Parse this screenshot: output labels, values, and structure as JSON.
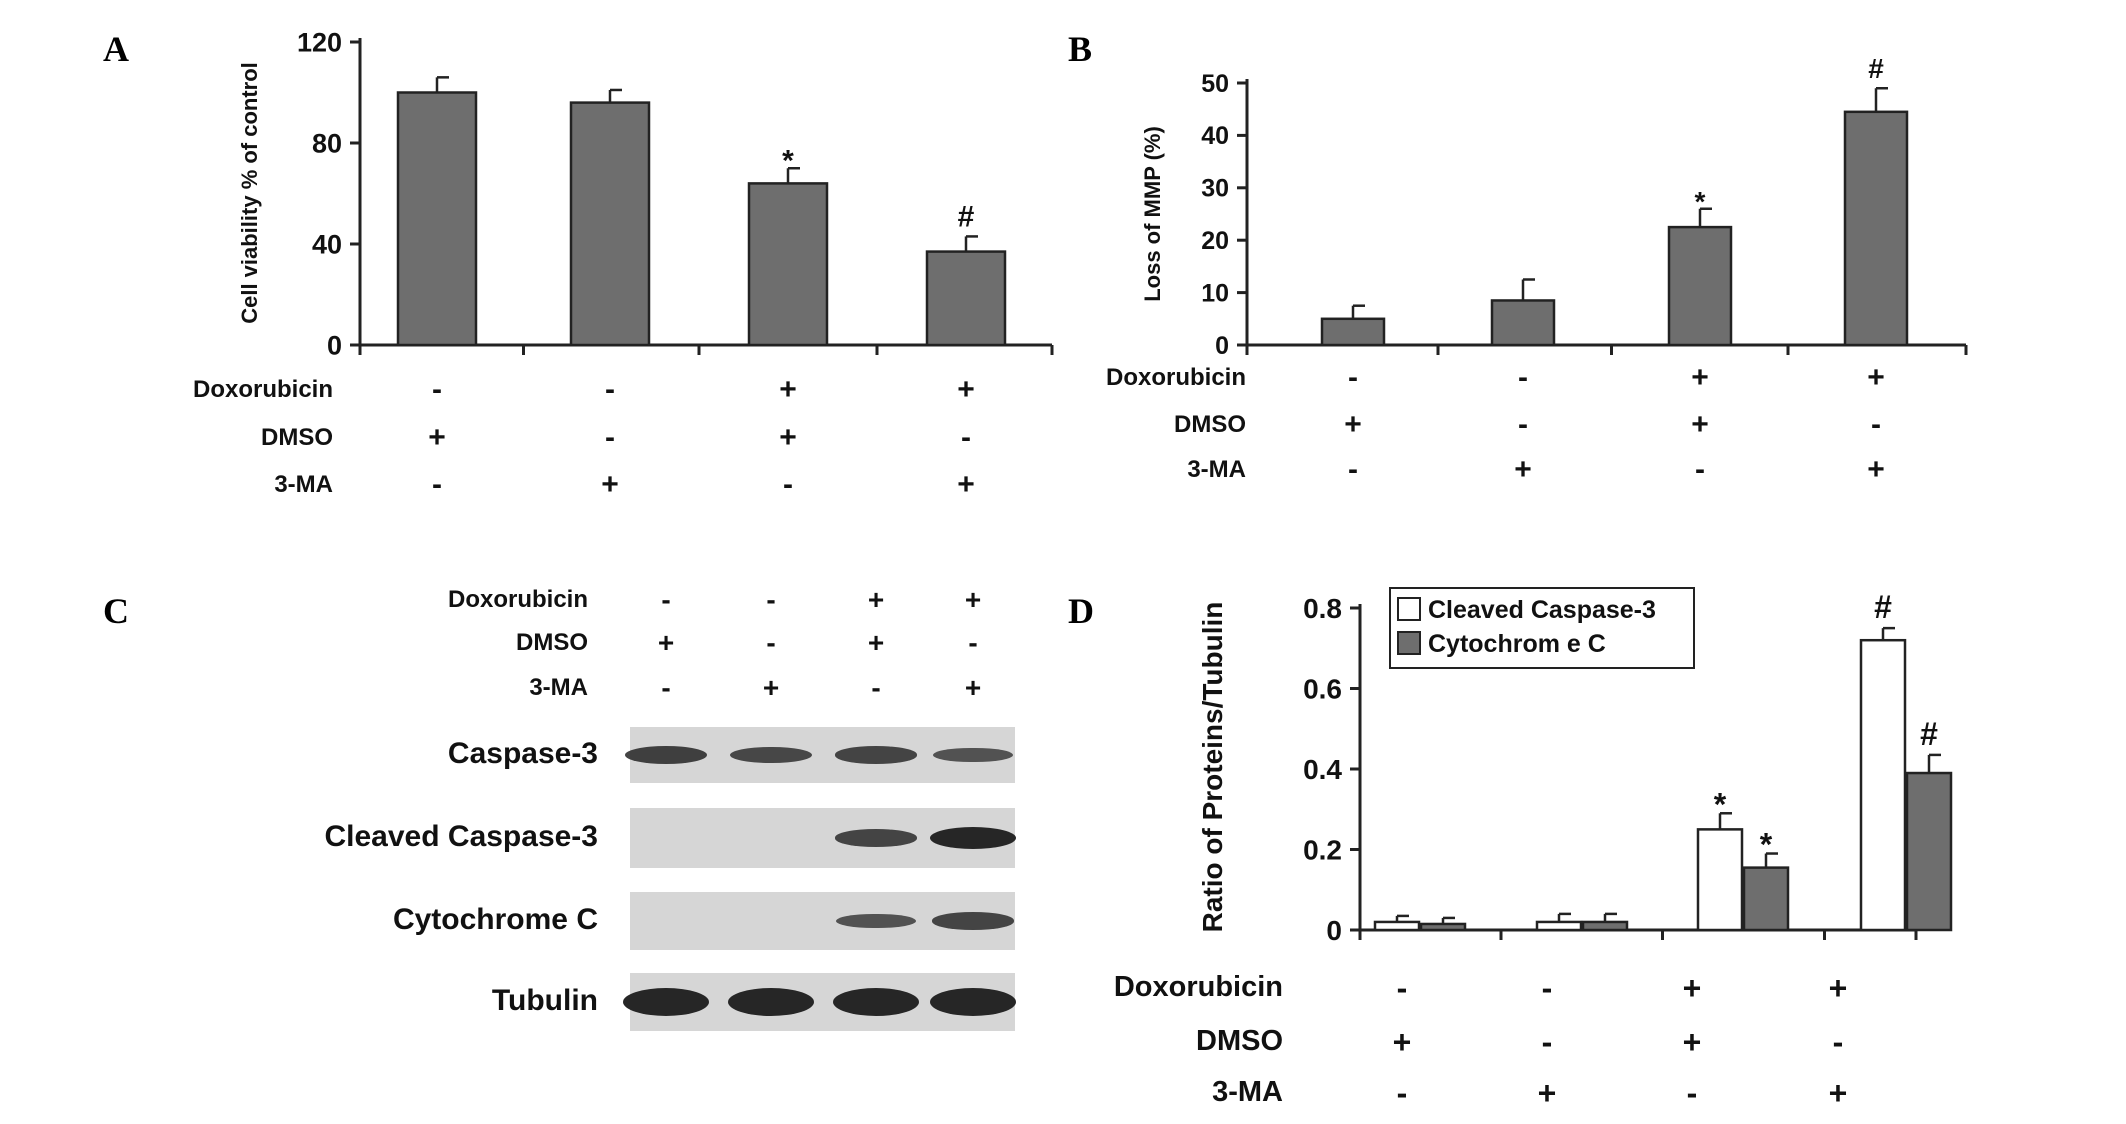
{
  "panels": {
    "A": {
      "letter": "A"
    },
    "B": {
      "letter": "B"
    },
    "C": {
      "letter": "C"
    },
    "D": {
      "letter": "D"
    }
  },
  "treatments": {
    "rows": [
      "Doxorubicin",
      "DMSO",
      "3-MA"
    ],
    "columns": [
      [
        "-",
        "+",
        "-"
      ],
      [
        "-",
        "-",
        "+"
      ],
      [
        "+",
        "+",
        "-"
      ],
      [
        "+",
        "-",
        "+"
      ]
    ]
  },
  "colors": {
    "bar_gray": "#6e6e6e",
    "bar_white": "#ffffff",
    "blot_bg": "#d6d6d6",
    "band": "#262626"
  },
  "blot": {
    "proteins": [
      "Caspase-3",
      "Cleaved Caspase-3",
      "Cytochrome C",
      "Tubulin"
    ],
    "band_intensity": [
      [
        0.75,
        0.65,
        0.7,
        0.55
      ],
      [
        0.0,
        0.0,
        0.7,
        1.0
      ],
      [
        0.0,
        0.0,
        0.55,
        0.7
      ],
      [
        1.0,
        1.0,
        1.0,
        1.0
      ]
    ]
  },
  "chart_data": [
    {
      "panel": "A",
      "type": "bar",
      "ylabel": "Cell viability % of control",
      "ylim": [
        0,
        120
      ],
      "yticks": [
        0,
        40,
        80,
        120
      ],
      "series": [
        {
          "values": [
            100,
            96,
            64,
            37
          ],
          "errors": [
            6,
            5,
            6,
            6
          ],
          "color": "#6e6e6e",
          "annotations": [
            "",
            "",
            "*",
            "#"
          ]
        }
      ]
    },
    {
      "panel": "B",
      "type": "bar",
      "ylabel": "Loss of MMP (%)",
      "ylim": [
        0,
        50
      ],
      "yticks": [
        0,
        10,
        20,
        30,
        40,
        50
      ],
      "series": [
        {
          "values": [
            5,
            8.5,
            22.5,
            44.5
          ],
          "errors": [
            2.5,
            4,
            3.5,
            4.5
          ],
          "color": "#6e6e6e",
          "annotations": [
            "",
            "",
            "*",
            "#"
          ]
        }
      ]
    },
    {
      "panel": "D",
      "type": "bar",
      "ylabel": "Ratio of Proteins/Tubulin",
      "ylim": [
        0,
        0.8
      ],
      "yticks": [
        0,
        0.2,
        0.4,
        0.6,
        0.8
      ],
      "ytick_labels": [
        "0",
        "0.2",
        "0.4",
        "0.6",
        "0.8"
      ],
      "legend_position": "top-left",
      "series": [
        {
          "name": "Cleaved Caspase-3",
          "values": [
            0.02,
            0.02,
            0.25,
            0.72
          ],
          "errors": [
            0.015,
            0.02,
            0.04,
            0.03
          ],
          "color": "#ffffff",
          "annotations": [
            "",
            "",
            "*",
            "#"
          ]
        },
        {
          "name": "Cytochrom e C",
          "values": [
            0.015,
            0.02,
            0.155,
            0.39
          ],
          "errors": [
            0.015,
            0.02,
            0.035,
            0.045
          ],
          "color": "#6e6e6e",
          "annotations": [
            "",
            "",
            "*",
            "#"
          ]
        }
      ]
    }
  ]
}
